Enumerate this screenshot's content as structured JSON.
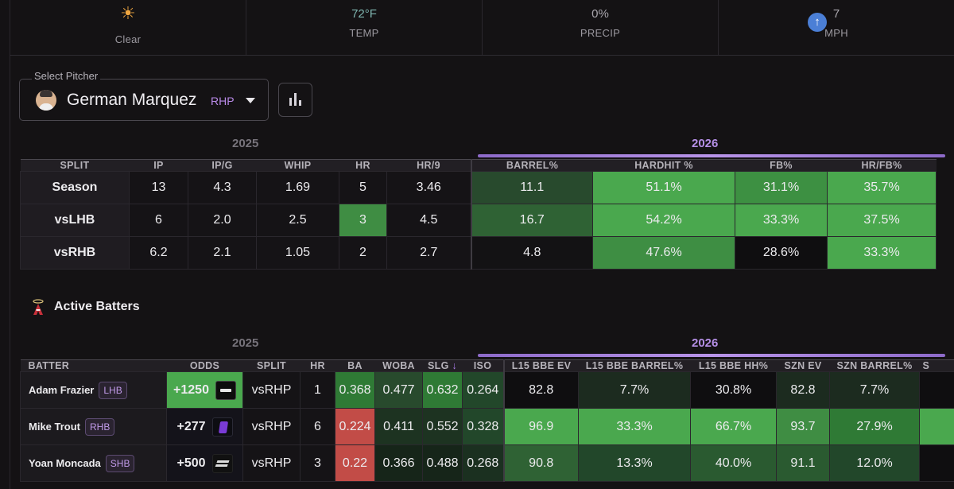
{
  "weather": {
    "condition_icon": "sun-icon",
    "condition": "Clear",
    "temp_value": "72°F",
    "temp_label": "TEMP",
    "precip_value": "0%",
    "precip_label": "PRECIP",
    "wind_icon": "arrow-up-icon",
    "wind_value": "7",
    "wind_label": "MPH"
  },
  "pitcher": {
    "select_label": "Select Pitcher",
    "name": "German Marquez",
    "hand": "RHP"
  },
  "pitcher_table": {
    "year_left": "2025",
    "year_right": "2026",
    "headers": [
      "SPLIT",
      "IP",
      "IP/G",
      "WHIP",
      "HR",
      "HR/9",
      "BARREL%",
      "HARDHIT %",
      "FB%",
      "HR/FB%"
    ],
    "rows": [
      [
        "Season",
        "13",
        "4.3",
        "1.69",
        "5",
        "3.46",
        "11.1",
        "51.1%",
        "31.1%",
        "35.7%"
      ],
      [
        "vsLHB",
        "6",
        "2.0",
        "2.5",
        "3",
        "4.5",
        "16.7",
        "54.2%",
        "33.3%",
        "37.5%"
      ],
      [
        "vsRHB",
        "6.2",
        "2.1",
        "1.05",
        "2",
        "2.7",
        "4.8",
        "47.6%",
        "28.6%",
        "33.3%"
      ]
    ]
  },
  "active_batters": {
    "title": "Active Batters",
    "team_icon": "angels-logo-icon",
    "year_left": "2025",
    "year_right": "2026",
    "headers": [
      "BATTER",
      "ODDS",
      "SPLIT",
      "HR",
      "BA",
      "WOBA",
      "SLG",
      "ISO",
      "L15 BBE EV",
      "L15 BBE BARREL%",
      "L15 BBE HH%",
      "SZN EV",
      "SZN BARREL%",
      "S"
    ],
    "rows": [
      {
        "name": "Adam Frazier",
        "hand": "LHB",
        "odds": "+1250",
        "book": "fanduel-logo-icon",
        "cells": [
          "vsRHP",
          "1",
          "0.368",
          "0.477",
          "0.632",
          "0.264",
          "82.8",
          "7.7%",
          "30.8%",
          "82.8",
          "7.7%"
        ]
      },
      {
        "name": "Mike Trout",
        "hand": "RHB",
        "odds": "+277",
        "book": "betmgm-logo-icon",
        "cells": [
          "vsRHP",
          "6",
          "0.224",
          "0.411",
          "0.552",
          "0.328",
          "96.9",
          "33.3%",
          "66.7%",
          "93.7",
          "27.9%"
        ]
      },
      {
        "name": "Yoan Moncada",
        "hand": "SHB",
        "odds": "+500",
        "book": "sportsbook-logo-icon",
        "cells": [
          "vsRHP",
          "3",
          "0.22",
          "0.366",
          "0.488",
          "0.268",
          "90.8",
          "13.3%",
          "40.0%",
          "91.1",
          "12.0%"
        ]
      }
    ]
  },
  "colors": {
    "bright_green": "#4aa84e",
    "mid_green": "#2f7a35",
    "dark_green": "#22472a",
    "red": "#c24c47",
    "accent_purple": "#b58fe6"
  }
}
